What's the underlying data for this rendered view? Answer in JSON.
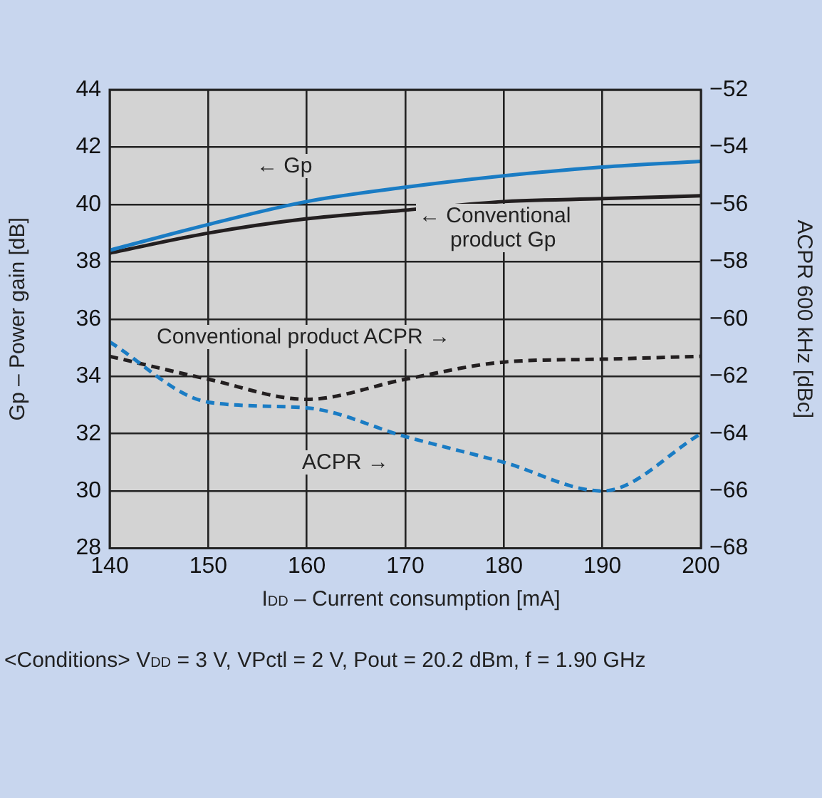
{
  "chart_data": {
    "type": "line",
    "xlabel": "I$_{DD}$ – Current consumption [mA]",
    "ylabel": "Gp – Power gain [dB]",
    "y2label": "ACPR 600 kHz [dBc]",
    "x": [
      140,
      150,
      160,
      170,
      180,
      190,
      200
    ],
    "xlim": [
      140,
      200
    ],
    "xticks": [
      140,
      150,
      160,
      170,
      180,
      190,
      200
    ],
    "ylim": [
      28,
      44
    ],
    "yticks": [
      28,
      30,
      32,
      34,
      36,
      38,
      40,
      42,
      44
    ],
    "y2lim": [
      -68,
      -52
    ],
    "y2ticks": [
      {
        "value": -68,
        "label": "−68"
      },
      {
        "value": -66,
        "label": "−66"
      },
      {
        "value": -64,
        "label": "−64"
      },
      {
        "value": -62,
        "label": "−62"
      },
      {
        "value": -60,
        "label": "−60"
      },
      {
        "value": -58,
        "label": "−58"
      },
      {
        "value": -56,
        "label": "−56"
      },
      {
        "value": -54,
        "label": "−54"
      },
      {
        "value": -52,
        "label": "−52"
      }
    ],
    "series": [
      {
        "color": "#1a7cc4",
        "line_style": "solid",
        "values": [
          38.4,
          39.3,
          40.1,
          40.6,
          41.0,
          41.3,
          41.5
        ]
      },
      {
        "color": "#231f20",
        "line_style": "solid",
        "values": [
          38.3,
          39.0,
          39.5,
          39.8,
          40.1,
          40.2,
          40.3
        ]
      },
      {
        "color": "#1a7cc4",
        "line_style": "dashed",
        "axis": "y2",
        "values": [
          -60.8,
          -62.9,
          -63.1,
          -64.1,
          -65.0,
          -66.0,
          -64.0
        ]
      },
      {
        "color": "#231f20",
        "line_style": "dashed",
        "axis": "y2",
        "values": [
          -61.3,
          -62.1,
          -62.8,
          -62.1,
          -61.5,
          -61.4,
          -61.3
        ]
      }
    ],
    "annotations": [
      "← Gp",
      "← Conventional product Gp",
      "Conventional product ACPR →",
      "ACPR →",
      "<Conditions> V$_{DD}$ = 3 V, VPctl = 2 V, Pout = 20.2 dBm, f = 1.90 GHz"
    ],
    "grid": true,
    "legend": false,
    "marker": "none"
  }
}
